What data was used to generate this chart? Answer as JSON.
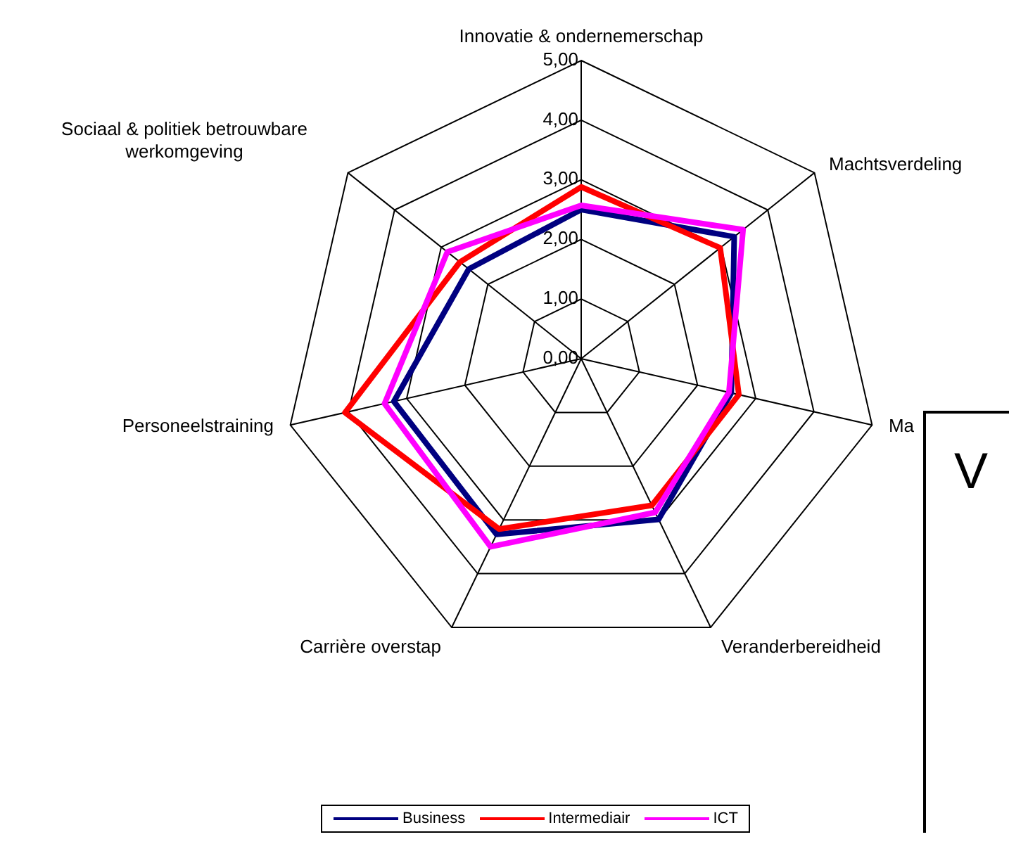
{
  "chart_data": {
    "type": "radar",
    "categories": [
      "Innovatie & ondernemerschap",
      "Machtsverdeling",
      "Ma",
      "Veranderbereidheid",
      "Carrière overstap",
      "Personeelstraining",
      "Sociaal & politiek betrouwbare werkomgeving"
    ],
    "series": [
      {
        "name": "Business",
        "color": "#000080",
        "values": [
          2.5,
          3.28,
          2.58,
          2.99,
          3.27,
          3.22,
          2.41
        ]
      },
      {
        "name": "Intermediair",
        "color": "#ff0000",
        "values": [
          2.88,
          2.98,
          2.71,
          2.73,
          3.17,
          4.06,
          2.6
        ]
      },
      {
        "name": "ICT",
        "color": "#ff00ff",
        "values": [
          2.57,
          3.47,
          2.54,
          2.86,
          3.5,
          3.38,
          2.87
        ]
      }
    ],
    "ylim": [
      0,
      5
    ],
    "yticks": [
      {
        "value": 0,
        "label": "0,00"
      },
      {
        "value": 1,
        "label": "1,00"
      },
      {
        "value": 2,
        "label": "2,00"
      },
      {
        "value": 3,
        "label": "3,00"
      },
      {
        "value": 4,
        "label": "4,00"
      },
      {
        "value": 5,
        "label": "5,00"
      }
    ],
    "grid": true,
    "legend": "bottom",
    "marker": "none",
    "line_style": "solid",
    "annotations": [
      "V"
    ]
  }
}
